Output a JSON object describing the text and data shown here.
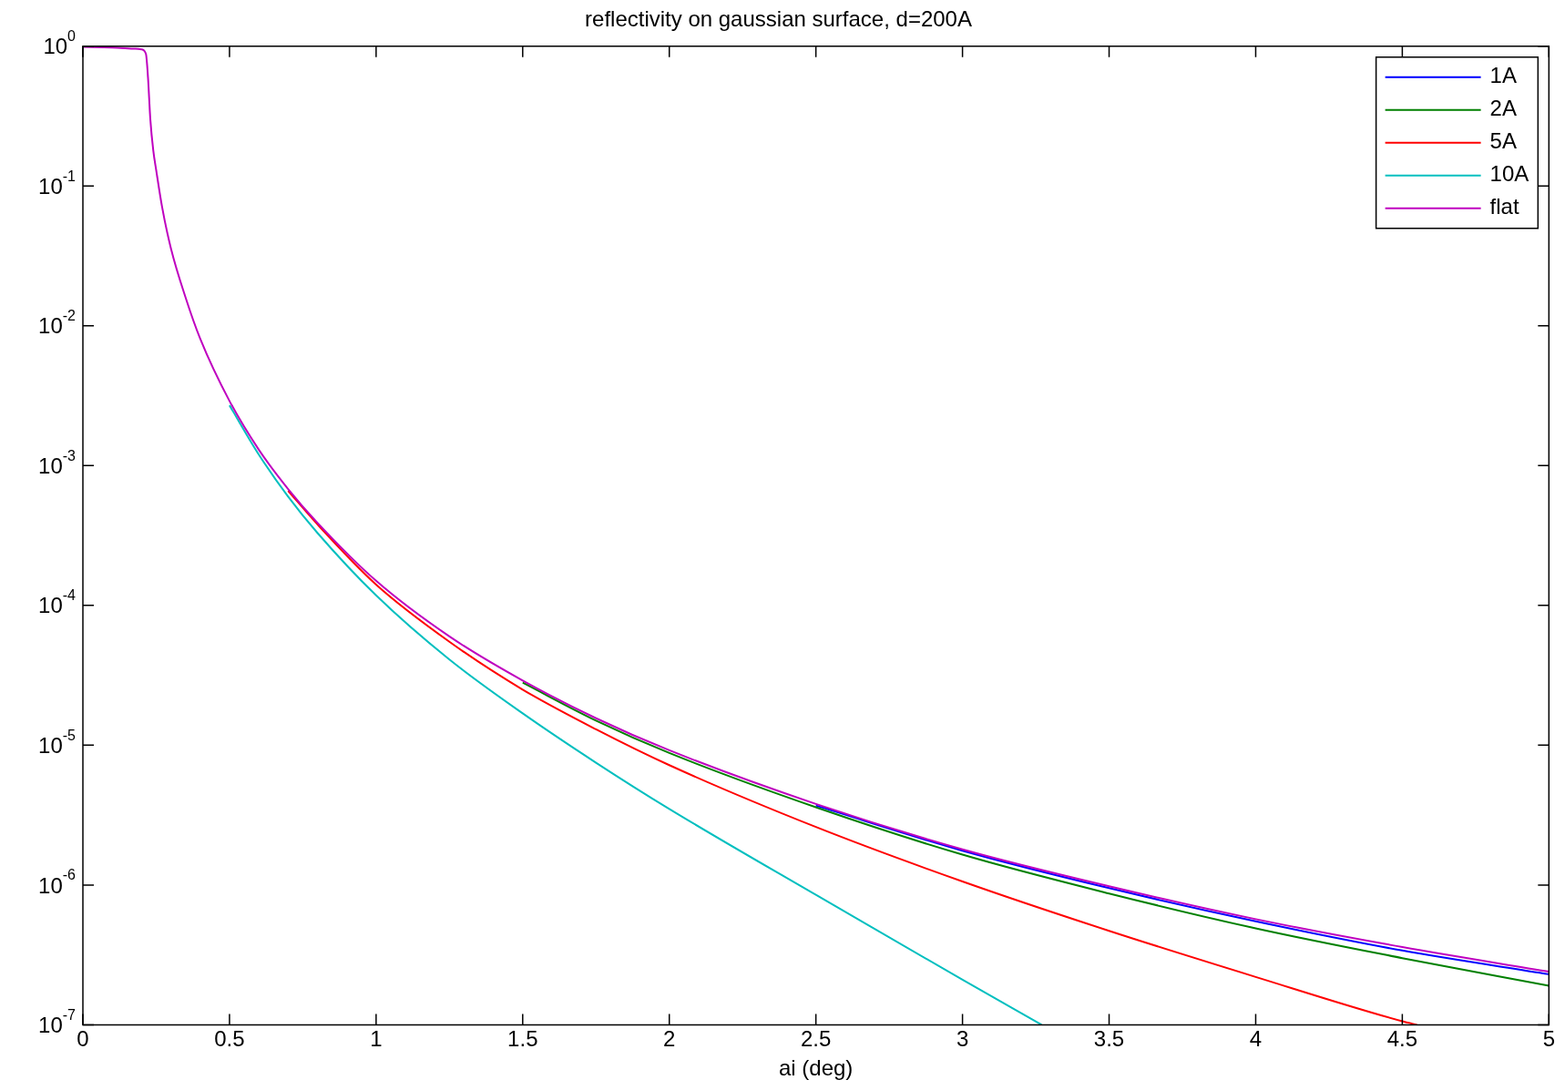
{
  "chart_data": {
    "type": "line",
    "title": "reflectivity on gaussian surface, d=200A",
    "xlabel": "ai (deg)",
    "xlim": [
      0,
      5
    ],
    "xticks": [
      0,
      0.5,
      1,
      1.5,
      2,
      2.5,
      3,
      3.5,
      4,
      4.5,
      5
    ],
    "ylim": [
      1e-07,
      1
    ],
    "yticks": [
      {
        "value": 1,
        "label": "10$^{0}$"
      },
      {
        "value": 0.1,
        "label": "10$^{-1}$"
      },
      {
        "value": 0.01,
        "label": "10$^{-2}$"
      },
      {
        "value": 0.001,
        "label": "10$^{-3}$"
      },
      {
        "value": 0.0001,
        "label": "10$^{-4}$"
      },
      {
        "value": 1e-05,
        "label": "10$^{-5}$"
      },
      {
        "value": 1e-06,
        "label": "10$^{-6}$"
      },
      {
        "value": 1e-07,
        "label": "10$^{-7}$"
      }
    ],
    "log": "y",
    "grid": false,
    "legend": "top right",
    "line_style": "solid",
    "marker": "none",
    "series": [
      {
        "name": "1A",
        "color": "#0000ff",
        "x": [
          2.5,
          3,
          3.5,
          4,
          4.5,
          5
        ],
        "values": [
          3.7e-06,
          1.76e-06,
          9.5e-07,
          5.5e-07,
          3.4e-07,
          2.3e-07
        ]
      },
      {
        "name": "2A",
        "color": "#008000",
        "x": [
          1.5,
          1.75,
          2,
          2.5,
          3,
          3.5,
          4,
          4.5,
          5
        ],
        "values": [
          2.8e-05,
          1.5e-05,
          8.8e-06,
          3.6e-06,
          1.65e-06,
          8.7e-07,
          4.9e-07,
          3e-07,
          1.9e-07
        ]
      },
      {
        "name": "5A",
        "color": "#ff0000",
        "x": [
          0.7,
          0.8,
          1,
          1.25,
          1.5,
          1.75,
          2,
          2.5,
          3,
          3.5,
          4,
          4.5,
          4.55
        ],
        "values": [
          0.00066,
          0.00038,
          0.000141,
          5.5e-05,
          2.5e-05,
          1.3e-05,
          7.2e-06,
          2.6e-06,
          1.06e-06,
          4.7e-07,
          2.2e-07,
          1.06e-07,
          1e-07
        ]
      },
      {
        "name": "10A",
        "color": "#00bfbf",
        "x": [
          0.5,
          0.6,
          0.7,
          0.8,
          1,
          1.25,
          1.5,
          1.75,
          2,
          2.5,
          3,
          3.27
        ],
        "values": [
          0.0027,
          0.0012,
          0.0006,
          0.00033,
          0.000118,
          4.1e-05,
          1.69e-05,
          7.5e-06,
          3.5e-06,
          8.5e-07,
          2.1e-07,
          1e-07
        ]
      },
      {
        "name": "flat",
        "color": "#bf00bf",
        "x": [
          0,
          0.1,
          0.18,
          0.2,
          0.215,
          0.222,
          0.23,
          0.24,
          0.25,
          0.27,
          0.3,
          0.35,
          0.4,
          0.5,
          0.6,
          0.7,
          0.8,
          1,
          1.25,
          1.5,
          1.75,
          2,
          2.5,
          3,
          3.5,
          4,
          4.5,
          5
        ],
        "values": [
          0.99,
          0.98,
          0.96,
          0.95,
          0.88,
          0.6,
          0.3,
          0.18,
          0.13,
          0.071,
          0.036,
          0.016,
          0.0081,
          0.0029,
          0.0013,
          0.00068,
          0.00039,
          0.00015,
          6e-05,
          2.9e-05,
          1.56e-05,
          9.2e-06,
          3.8e-06,
          1.8e-06,
          9.8e-07,
          5.7e-07,
          3.6e-07,
          2.4e-07
        ]
      }
    ]
  }
}
